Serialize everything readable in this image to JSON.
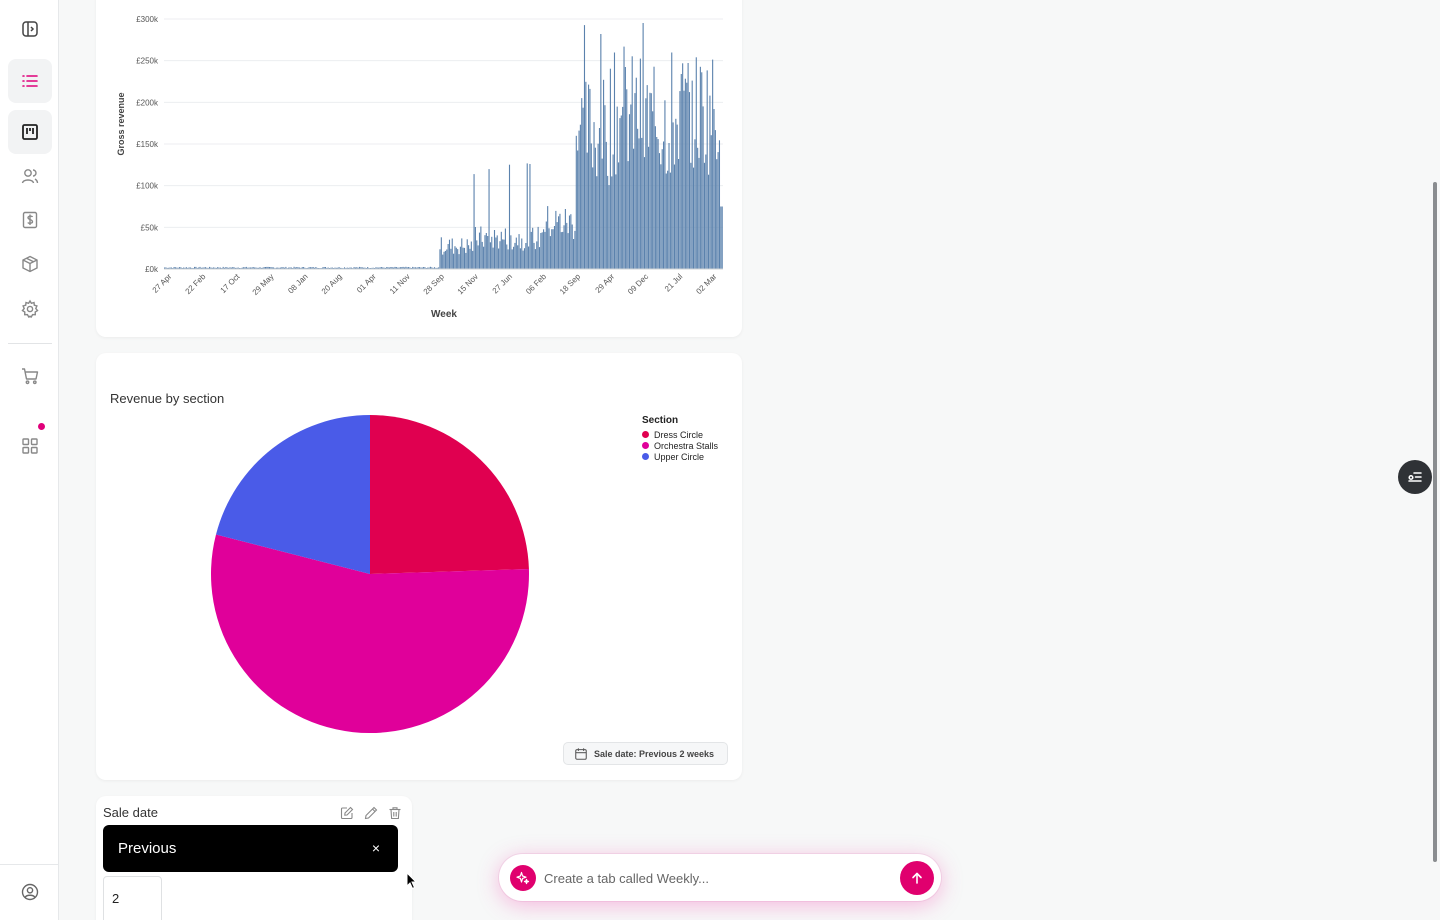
{
  "sidebar": {
    "items": [
      {
        "name": "sidebar-toggle-icon"
      },
      {
        "name": "list-icon",
        "active": true
      },
      {
        "name": "dashboard-icon",
        "active": true
      },
      {
        "name": "users-icon"
      },
      {
        "name": "dollar-icon"
      },
      {
        "name": "package-icon"
      },
      {
        "name": "gear-icon"
      },
      {
        "name": "cart-icon"
      },
      {
        "name": "apps-grid-icon"
      },
      {
        "name": "user-circle-icon"
      }
    ],
    "accent": "#e0007a"
  },
  "revenue_chart": {
    "ylabel": "Gross revenue",
    "xlabel": "Week",
    "yticks": [
      "£0k",
      "£50k",
      "£100k",
      "£150k",
      "£200k",
      "£250k",
      "£300k"
    ],
    "xticks": [
      "27 Apr",
      "22 Feb",
      "17 Oct",
      "29 May",
      "08 Jan",
      "20 Aug",
      "01 Apr",
      "11 Nov",
      "28 Sep",
      "15 Nov",
      "27 Jun",
      "06 Feb",
      "18 Sep",
      "29 Apr",
      "09 Dec",
      "21 Jul",
      "02 Mar"
    ],
    "bar_color": "#5b82ad"
  },
  "pie_card": {
    "title": "Revenue by section",
    "legend_title": "Section",
    "date_chip": "Sale date: Previous 2 weeks"
  },
  "filter_card": {
    "label": "Sale date",
    "tooltip": "Previous",
    "close": "×",
    "value": "2"
  },
  "prompt": {
    "placeholder": "Create a tab called Weekly..."
  },
  "chart_data": [
    {
      "type": "bar",
      "title": "",
      "xlabel": "Week",
      "ylabel": "Gross revenue",
      "ylim": [
        0,
        300000
      ],
      "grid": true,
      "x_tick_labels": [
        "27 Apr",
        "22 Feb",
        "17 Oct",
        "29 May",
        "08 Jan",
        "20 Aug",
        "01 Apr",
        "11 Nov",
        "28 Sep",
        "15 Nov",
        "27 Jun",
        "06 Feb",
        "18 Sep",
        "29 Apr",
        "09 Dec",
        "21 Jul",
        "02 Mar"
      ],
      "segments": [
        {
          "from": "27 Apr",
          "to": "28 Sep",
          "approx_value": 2000
        },
        {
          "from": "28 Sep",
          "to": "15 Nov",
          "approx_value": 30000,
          "peak": 80000
        },
        {
          "from": "15 Nov",
          "to": "06 Feb",
          "approx_value": 40000,
          "peak": 130000
        },
        {
          "from": "06 Feb",
          "to": "18 Sep",
          "approx_value": 60000,
          "peak": 140000
        },
        {
          "from": "18 Sep",
          "to": "29 Apr",
          "approx_value": 180000,
          "peak": 305000
        },
        {
          "from": "29 Apr",
          "to": "09 Dec",
          "approx_value": 200000,
          "peak": 310000
        },
        {
          "from": "09 Dec",
          "to": "21 Jul",
          "approx_value": 190000,
          "peak": 295000
        },
        {
          "from": "21 Jul",
          "to": "02 Mar",
          "approx_value": 205000,
          "peak": 265000
        }
      ]
    },
    {
      "type": "pie",
      "title": "Revenue by section",
      "legend_title": "Section",
      "legend_position": "top-right",
      "slices": [
        {
          "label": "Dress Circle",
          "value": 24.5,
          "color": "#e00050"
        },
        {
          "label": "Orchestra Stalls",
          "value": 54.5,
          "color": "#e0009a"
        },
        {
          "label": "Upper Circle",
          "value": 21.0,
          "color": "#4a5be8"
        }
      ]
    }
  ]
}
